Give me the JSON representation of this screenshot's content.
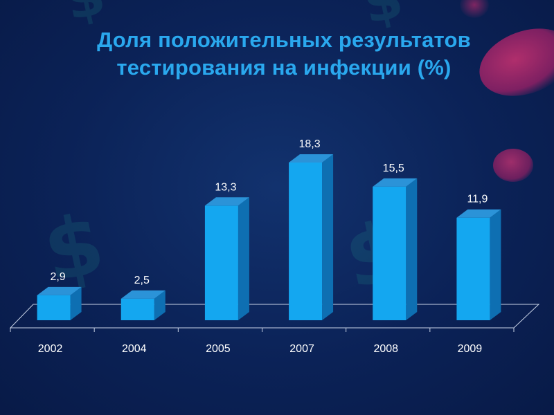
{
  "slide": {
    "title_line1": "Доля положительных результатов",
    "title_line2": "тестирования на инфекции (%)"
  },
  "colors": {
    "background": "#0b2257",
    "title": "#2aa8ee",
    "bar_front": "#14a7f0",
    "bar_side": "#0e6fb2",
    "bar_top": "#2b93d8",
    "text": "#ffffff"
  },
  "decor": {
    "glyph": "$"
  },
  "chart_data": {
    "type": "bar",
    "style": "3d",
    "categories": [
      "2002",
      "2004",
      "2005",
      "2007",
      "2008",
      "2009"
    ],
    "values": [
      2.9,
      2.5,
      13.3,
      18.3,
      15.5,
      11.9
    ],
    "value_labels": [
      "2,9",
      "2,5",
      "13,3",
      "18,3",
      "15,5",
      "11,9"
    ],
    "ylim": [
      0,
      20
    ],
    "grid": false,
    "legend": "none"
  }
}
